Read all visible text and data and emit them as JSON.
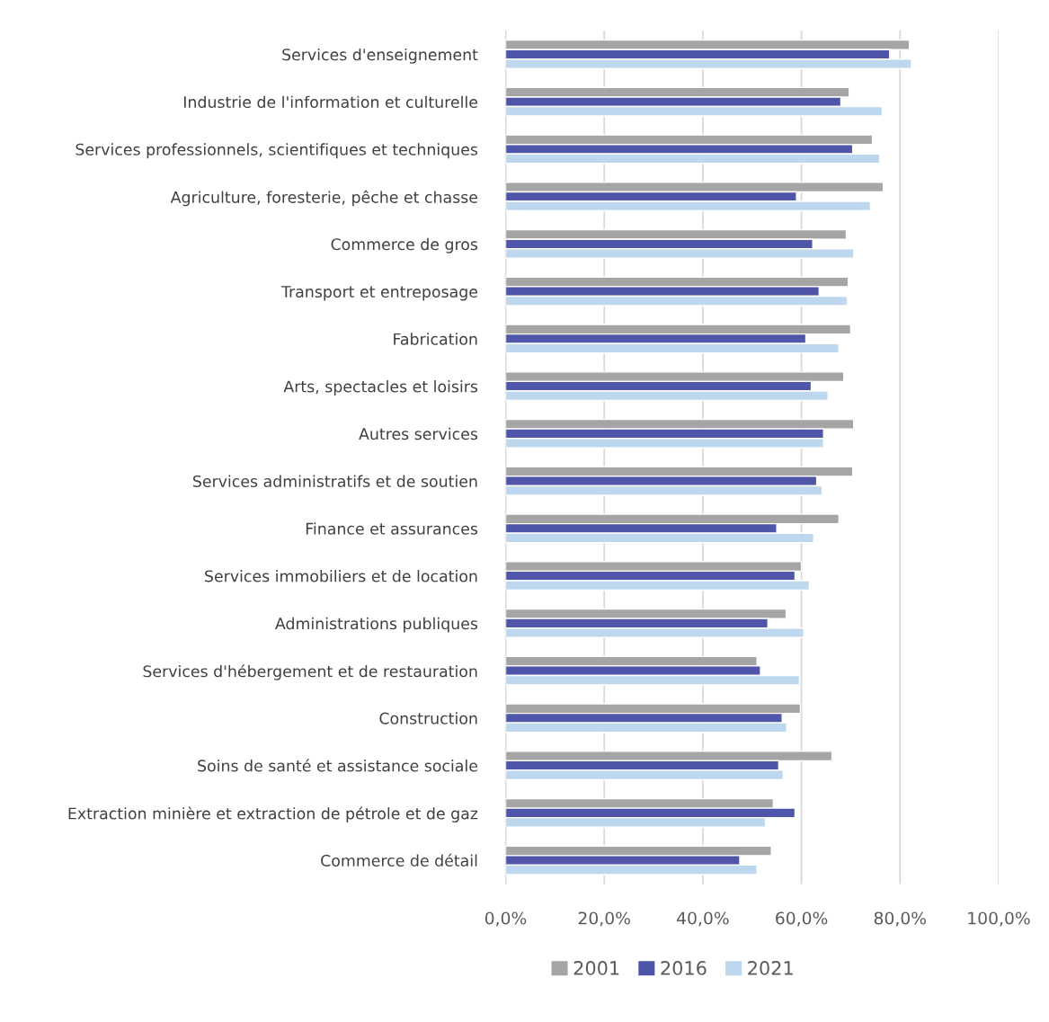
{
  "chart_data": {
    "type": "bar",
    "orientation": "horizontal",
    "categories": [
      "Services d'enseignement",
      "Industrie de l'information et culturelle",
      "Services professionnels, scientifiques et techniques",
      "Agriculture, foresterie, pêche et chasse",
      "Commerce de gros",
      "Transport et entreposage",
      "Fabrication",
      "Arts, spectacles et loisirs",
      "Autres services",
      "Services administratifs et de soutien",
      "Finance et assurances",
      "Services immobiliers et de location",
      "Administrations publiques",
      "Services d'hébergement et de restauration",
      "Construction",
      "Soins de santé et assistance sociale",
      "Extraction minière et extraction de pétrole et de gaz",
      "Commerce de détail"
    ],
    "series": [
      {
        "name": "2001",
        "color": "#a5a5a5",
        "values": [
          81.9,
          69.7,
          74.4,
          76.6,
          69.1,
          69.5,
          70.0,
          68.6,
          70.6,
          70.4,
          67.6,
          60.0,
          56.9,
          51.0,
          59.8,
          66.2,
          54.3,
          53.9
        ]
      },
      {
        "name": "2016",
        "color": "#4f55a8",
        "values": [
          77.9,
          68.0,
          70.4,
          59.0,
          62.3,
          63.6,
          60.9,
          62.0,
          64.5,
          63.1,
          55.0,
          58.7,
          53.2,
          51.7,
          56.1,
          55.4,
          58.7,
          47.5
        ]
      },
      {
        "name": "2021",
        "color": "#bdd7ee",
        "values": [
          82.3,
          76.4,
          75.9,
          74.0,
          70.6,
          69.3,
          67.6,
          65.4,
          64.5,
          64.2,
          62.5,
          61.6,
          60.5,
          59.6,
          57.0,
          56.3,
          52.7,
          51.0
        ]
      }
    ],
    "xlim": [
      0,
      100
    ],
    "xticks": [
      {
        "value": 0,
        "label": "0,0%"
      },
      {
        "value": 20,
        "label": "20,0%"
      },
      {
        "value": 40,
        "label": "40,0%"
      },
      {
        "value": 60,
        "label": "60,0%"
      },
      {
        "value": 80,
        "label": "80,0%"
      },
      {
        "value": 100,
        "label": "100,0%"
      }
    ],
    "grid": "x",
    "legend": "bottom"
  }
}
